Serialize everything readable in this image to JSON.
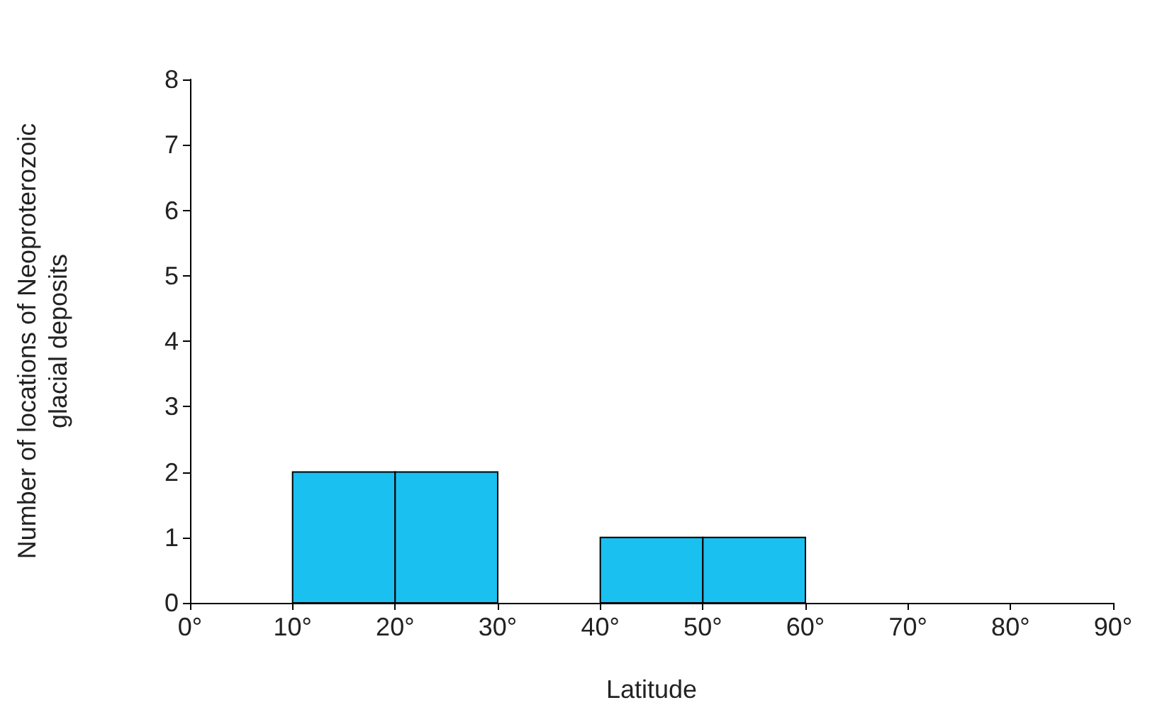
{
  "chart_data": {
    "type": "histogram",
    "xlabel": "Latitude",
    "ylabel": "Number of locations of Neoproterozoic\nglacial deposits",
    "bins": [
      0,
      10,
      20,
      30,
      40,
      50,
      60,
      70,
      80,
      90
    ],
    "values": [
      0,
      2,
      2,
      0,
      1,
      1,
      0,
      0,
      0
    ],
    "color": "#19c0f0",
    "xlim": [
      0,
      90
    ],
    "xticks": [
      {
        "value": 0,
        "label": "0°"
      },
      {
        "value": 10,
        "label": "10°"
      },
      {
        "value": 20,
        "label": "20°"
      },
      {
        "value": 30,
        "label": "30°"
      },
      {
        "value": 40,
        "label": "40°"
      },
      {
        "value": 50,
        "label": "50°"
      },
      {
        "value": 60,
        "label": "60°"
      },
      {
        "value": 70,
        "label": "70°"
      },
      {
        "value": 80,
        "label": "80°"
      },
      {
        "value": 90,
        "label": "90°"
      }
    ],
    "ylim": [
      0,
      8
    ],
    "yticks": [
      0,
      1,
      2,
      3,
      4,
      5,
      6,
      7,
      8
    ],
    "grid": false
  }
}
